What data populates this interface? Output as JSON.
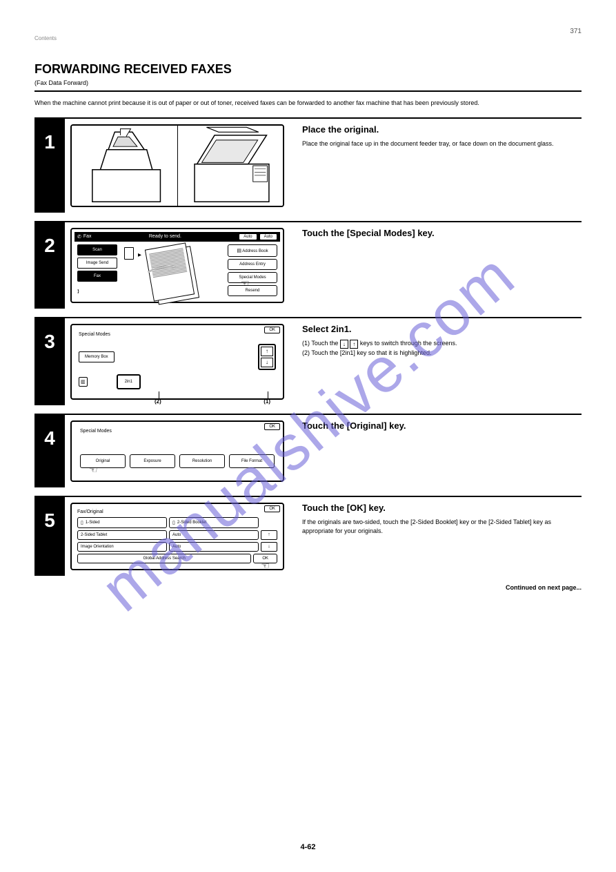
{
  "page": {
    "number_top": "371",
    "breadcrumb": "Contents",
    "title": "FORWARDING RECEIVED FAXES",
    "subtitle": "(Fax Data Forward)",
    "intro": "When the machine cannot print because it is out of paper or out of toner, received faxes can be forwarded to another fax machine that has been previously stored.",
    "continued": "Continued on next page...",
    "footer_page": "4-62"
  },
  "steps": [
    {
      "num": "1",
      "heading": "Place the original.",
      "desc": "Place the original face up in the document feeder tray, or face down on the document glass."
    },
    {
      "num": "2",
      "heading": "Touch the [Special Modes] key.",
      "desc": "",
      "panel": {
        "header_title": "Fax",
        "header_right": "Ready to send.",
        "header_btns": [
          "Auto",
          "Auto"
        ],
        "left_tabs": [
          "Scan",
          "Image Send",
          "Fax"
        ],
        "right_buttons": [
          "Address Book",
          "Address Entry",
          "Special Modes",
          "Resend"
        ]
      }
    },
    {
      "num": "3",
      "heading": "Select 2in1.",
      "desc_html": "(1) Touch the <span class='arrow-key'>↓</span> <span class='arrow-key'>↑</span> keys to switch through the screens.<br>(2) Touch the [2in1] key so that it is highlighted.",
      "panel": {
        "title": "Special Modes",
        "ok": "OK",
        "left_label": "Memory Box",
        "btn": "2in1",
        "pointers": [
          "(2)",
          "(1)"
        ]
      }
    },
    {
      "num": "4",
      "heading": "Touch the [Original] key.",
      "desc": "",
      "panel": {
        "title": "Special Modes",
        "ok": "OK",
        "buttons": [
          "Original",
          "Exposure",
          "Resolution",
          "File Format"
        ]
      }
    },
    {
      "num": "5",
      "heading": "Touch the [OK] key.",
      "desc": "If the originals are two-sided, touch the [2-Sided Booklet] key or the [2-Sided Tablet] key as appropriate for your originals.",
      "panel": {
        "title": "Fax/Original",
        "ok": "OK",
        "rows": [
          [
            "1-Sided",
            "2-Sided Booklet"
          ],
          [
            "2-Sided Tablet",
            "Auto"
          ],
          [
            "Image Orientation",
            "Auto"
          ]
        ],
        "global": "Global Address Search",
        "ok_btn": "OK"
      }
    }
  ],
  "colors": {
    "text": "#000000",
    "bg": "#ffffff",
    "watermark": "#6961d8"
  }
}
